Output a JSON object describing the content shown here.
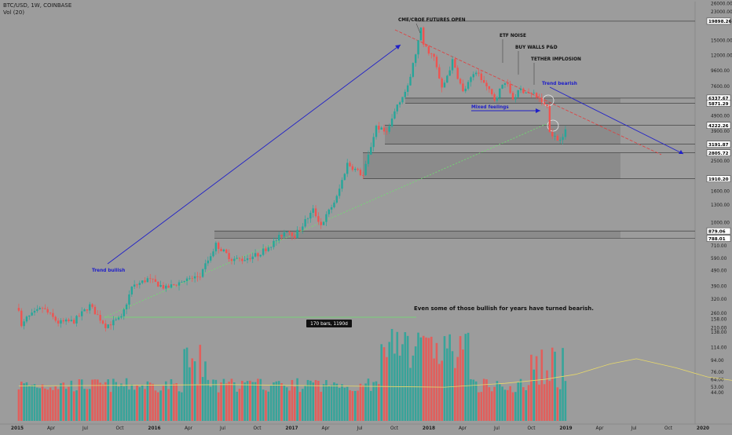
{
  "header": {
    "symbol_line": "BTC/USD, 1W, COINBASE",
    "volume_line": "Vol (20)"
  },
  "colors": {
    "background": "#9c9c9c",
    "up": "#26a69a",
    "down": "#ef5350",
    "volume_ma": "#e8d96a",
    "trend_bullish": "#2020c8",
    "support_line": "#6de36d",
    "resistance_line": "#e23b3b",
    "zone_fill": "#7e7e7e",
    "label_dark": "#111111"
  },
  "annotations": [
    {
      "text": "CME/CBOE FUTURES OPEN"
    },
    {
      "text": "ETF NOISE"
    },
    {
      "text": "BUY WALLS P&D"
    },
    {
      "text": "TETHER IMPLOSION"
    },
    {
      "text": "Trend bearish"
    },
    {
      "text": "Mixed feelings"
    },
    {
      "text": "Trend bullish"
    },
    {
      "text": "Even some of those bullish for years have turned bearish."
    }
  ],
  "measure_label": "170 bars, 1190d",
  "chart_data": {
    "type": "candlestick",
    "title": "BTC/USD, 1W, COINBASE",
    "y_scale": "log",
    "y_ticks": [
      "26000.00",
      "23000.00",
      "15000.00",
      "12000.00",
      "9600.00",
      "7600.00",
      "4900.00",
      "3900.00",
      "2500.00",
      "1600.00",
      "1300.00",
      "1000.00",
      "710.00",
      "590.00",
      "490.00",
      "390.00",
      "320.00",
      "260.00",
      "210.00"
    ],
    "volume_ticks": [
      "158.00",
      "138.00",
      "114.00",
      "94.00",
      "76.00",
      "64.00",
      "53.00",
      "44.00"
    ],
    "x_ticks": [
      "2015",
      "Apr",
      "Jul",
      "Oct",
      "2016",
      "Apr",
      "Jul",
      "Oct",
      "2017",
      "Apr",
      "Jul",
      "Oct",
      "2018",
      "Apr",
      "Jul",
      "Oct",
      "2019",
      "Apr",
      "Jul",
      "Oct",
      "2020"
    ],
    "level_labels": [
      "19898.26",
      "6337.67",
      "5871.29",
      "4222.26",
      "3191.87",
      "2805.72",
      "1910.20",
      "879.06",
      "788.01"
    ],
    "series": [
      {
        "name": "BTC/USD",
        "anchors": [
          [
            "2015-01-05",
            280
          ],
          [
            "2015-01-12",
            210
          ],
          [
            "2015-01-26",
            240
          ],
          [
            "2015-03-09",
            280
          ],
          [
            "2015-04-20",
            225
          ],
          [
            "2015-06-01",
            230
          ],
          [
            "2015-07-13",
            290
          ],
          [
            "2015-08-24",
            215
          ],
          [
            "2015-10-05",
            240
          ],
          [
            "2015-11-02",
            380
          ],
          [
            "2015-12-14",
            430
          ],
          [
            "2016-02-01",
            375
          ],
          [
            "2016-03-14",
            415
          ],
          [
            "2016-05-02",
            450
          ],
          [
            "2016-06-13",
            720
          ],
          [
            "2016-07-25",
            580
          ],
          [
            "2016-08-22",
            575
          ],
          [
            "2016-10-03",
            620
          ],
          [
            "2016-11-14",
            740
          ],
          [
            "2016-12-19",
            900
          ],
          [
            "2017-01-09",
            820
          ],
          [
            "2017-02-27",
            1200
          ],
          [
            "2017-03-20",
            960
          ],
          [
            "2017-05-01",
            1450
          ],
          [
            "2017-05-29",
            2400
          ],
          [
            "2017-07-10",
            2000
          ],
          [
            "2017-08-14",
            4200
          ],
          [
            "2017-09-11",
            3700
          ],
          [
            "2017-10-09",
            5800
          ],
          [
            "2017-11-06",
            7400
          ],
          [
            "2017-12-11",
            17500
          ],
          [
            "2017-12-18",
            14000
          ],
          [
            "2018-01-15",
            11500
          ],
          [
            "2018-02-05",
            7200
          ],
          [
            "2018-03-05",
            11000
          ],
          [
            "2018-04-02",
            6900
          ],
          [
            "2018-05-07",
            9500
          ],
          [
            "2018-06-25",
            6200
          ],
          [
            "2018-07-23",
            8200
          ],
          [
            "2018-08-13",
            6300
          ],
          [
            "2018-09-03",
            7200
          ],
          [
            "2018-10-15",
            6500
          ],
          [
            "2018-11-12",
            5600
          ],
          [
            "2018-11-19",
            3900
          ],
          [
            "2018-12-10",
            3400
          ],
          [
            "2018-12-31",
            3850
          ]
        ]
      }
    ],
    "volume_ma_anchors": [
      [
        0,
        54
      ],
      [
        40,
        55
      ],
      [
        80,
        56
      ],
      [
        120,
        54
      ],
      [
        162,
        52
      ],
      [
        185,
        58
      ],
      [
        200,
        64
      ],
      [
        212,
        72
      ],
      [
        225,
        88
      ],
      [
        235,
        96
      ],
      [
        250,
        82
      ],
      [
        262,
        68
      ],
      [
        276,
        60
      ],
      [
        285,
        59
      ]
    ]
  }
}
